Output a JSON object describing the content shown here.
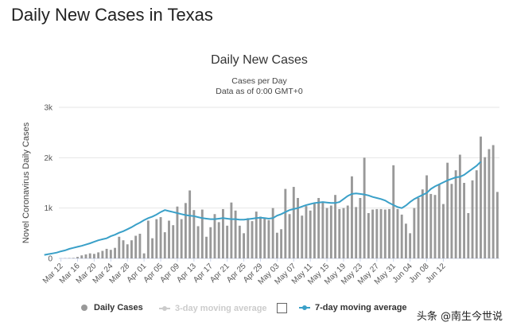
{
  "page": {
    "heading": "Daily New Cases in Texas",
    "watermark": "头条 @南生今世说"
  },
  "colors": {
    "bars": "#999999",
    "line7": "#3aa0c8",
    "line3": "#cccccc",
    "grid": "#e6e6e6"
  },
  "legend": {
    "daily_cases": "Daily Cases",
    "three_day": "3-day moving average",
    "seven_day": "7-day moving average"
  },
  "chart_data": {
    "type": "bar",
    "title": "Daily New Cases",
    "subtitle_line1": "Cases per Day",
    "subtitle_line2": "Data as of 0:00 GMT+0",
    "ylabel": "Novel Coronavirus Daily Cases",
    "xlabel": "",
    "ylim": [
      0,
      3000
    ],
    "yticks": [
      0,
      1000,
      2000,
      3000
    ],
    "ytick_labels": [
      "0",
      "1k",
      "2k",
      "3k"
    ],
    "x_ticks": [
      "Mar 12",
      "Mar 16",
      "Mar 20",
      "Mar 24",
      "Mar 28",
      "Apr 01",
      "Apr 05",
      "Apr 09",
      "Apr 13",
      "Apr 17",
      "Apr 21",
      "Apr 25",
      "Apr 29",
      "May 03",
      "May 07",
      "May 11",
      "May 15",
      "May 19",
      "May 23",
      "May 27",
      "May 31",
      "Jun 04",
      "Jun 08",
      "Jun 12"
    ],
    "grid": true,
    "legend_position": "bottom",
    "series": [
      {
        "name": "Daily Cases",
        "type": "bar",
        "start": "Mar 12",
        "values": [
          2,
          5,
          8,
          10,
          30,
          60,
          80,
          100,
          90,
          120,
          150,
          190,
          170,
          210,
          430,
          360,
          280,
          360,
          450,
          490,
          100,
          750,
          400,
          780,
          820,
          520,
          750,
          660,
          1030,
          780,
          1100,
          1350,
          960,
          640,
          970,
          430,
          620,
          880,
          720,
          980,
          650,
          1110,
          950,
          650,
          500,
          800,
          740,
          930,
          830,
          800,
          760,
          1000,
          510,
          580,
          1380,
          880,
          1420,
          1200,
          850,
          1040,
          950,
          1100,
          1200,
          1130,
          1000,
          1050,
          1260,
          980,
          1000,
          1050,
          1630,
          1020,
          1200,
          2000,
          900,
          970,
          980,
          980,
          970,
          980,
          1850,
          980,
          870,
          690,
          500,
          1000,
          1200,
          1370,
          1650,
          1280,
          1260,
          1470,
          1080,
          1900,
          1480,
          1750,
          2060,
          1500,
          900,
          1550,
          1750,
          2420,
          2010,
          2170,
          2250,
          1320
        ]
      },
      {
        "name": "7-day moving average",
        "type": "line",
        "start": "Mar 18",
        "values": [
          70,
          85,
          100,
          115,
          140,
          160,
          190,
          210,
          230,
          250,
          275,
          300,
          330,
          360,
          380,
          400,
          440,
          470,
          510,
          540,
          580,
          620,
          670,
          710,
          760,
          800,
          830,
          870,
          920,
          960,
          940,
          920,
          900,
          880,
          860,
          850,
          840,
          820,
          800,
          790,
          780,
          780,
          790,
          800,
          790,
          780,
          780,
          770,
          770,
          780,
          790,
          800,
          810,
          800,
          790,
          800,
          850,
          880,
          920,
          960,
          980,
          1000,
          1030,
          1060,
          1080,
          1100,
          1110,
          1120,
          1110,
          1100,
          1100,
          1120,
          1180,
          1240,
          1280,
          1290,
          1280,
          1270,
          1250,
          1220,
          1200,
          1180,
          1150,
          1100,
          1060,
          1020,
          1000,
          1050,
          1120,
          1180,
          1220,
          1260,
          1300,
          1380,
          1430,
          1470,
          1510,
          1550,
          1580,
          1610,
          1620,
          1660,
          1720,
          1780,
          1840,
          1920
        ]
      }
    ]
  }
}
